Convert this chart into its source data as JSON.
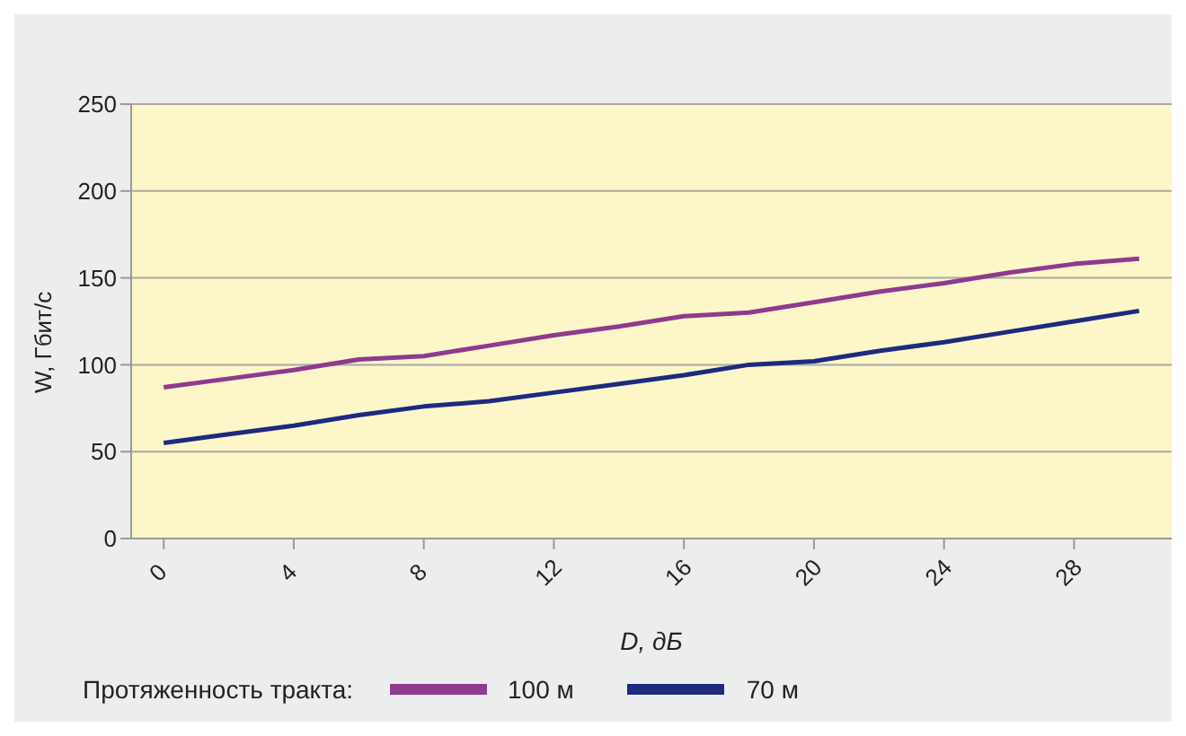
{
  "chart_data": {
    "type": "line",
    "xlabel": "D, дБ",
    "ylabel": "W, Гбит/с",
    "legend_title": "Протяженность тракта:",
    "x": [
      0,
      2,
      4,
      6,
      8,
      10,
      12,
      14,
      16,
      18,
      20,
      22,
      24,
      26,
      28,
      30
    ],
    "series": [
      {
        "name": "100 м",
        "color": "#8e3a8e",
        "values": [
          87,
          92,
          97,
          103,
          105,
          111,
          117,
          122,
          128,
          130,
          136,
          142,
          147,
          153,
          158,
          161
        ]
      },
      {
        "name": "70 м",
        "color": "#1c2a80",
        "values": [
          55,
          60,
          65,
          71,
          76,
          79,
          84,
          89,
          94,
          100,
          102,
          108,
          113,
          119,
          125,
          131
        ]
      }
    ],
    "xlim": [
      -1,
      31
    ],
    "xticks": [
      0,
      4,
      8,
      12,
      16,
      20,
      24,
      28
    ],
    "ylim": [
      0,
      250
    ],
    "yticks": [
      0,
      50,
      100,
      150,
      200,
      250
    ],
    "grid": "y",
    "legend": "bottom",
    "marker": "none",
    "line_style": "solid"
  }
}
